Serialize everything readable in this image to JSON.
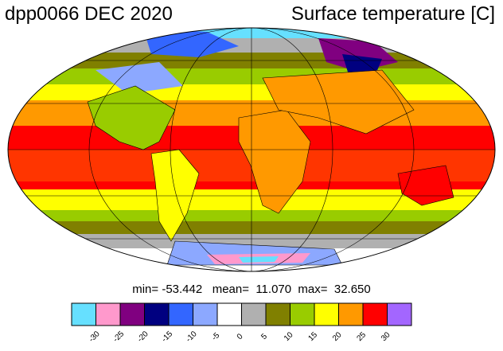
{
  "title": {
    "left": "dpp0066 DEC 2020",
    "right": "Surface temperature [C]"
  },
  "stats_text": "min= -53.442   mean=  11.070  max=  32.650",
  "colorbar": {
    "colors": [
      "#66e0ff",
      "#ff99cc",
      "#800080",
      "#000080",
      "#3366ff",
      "#8ca8ff",
      "#ffffff",
      "#b0b0b0",
      "#808000",
      "#99cc00",
      "#ffff00",
      "#ff9900",
      "#ff0000",
      "#a366ff"
    ],
    "tick_labels": [
      "-30",
      "-25",
      "-20",
      "-15",
      "-10",
      "-5",
      "0",
      "5",
      "10",
      "15",
      "20",
      "25",
      "30"
    ]
  }
}
